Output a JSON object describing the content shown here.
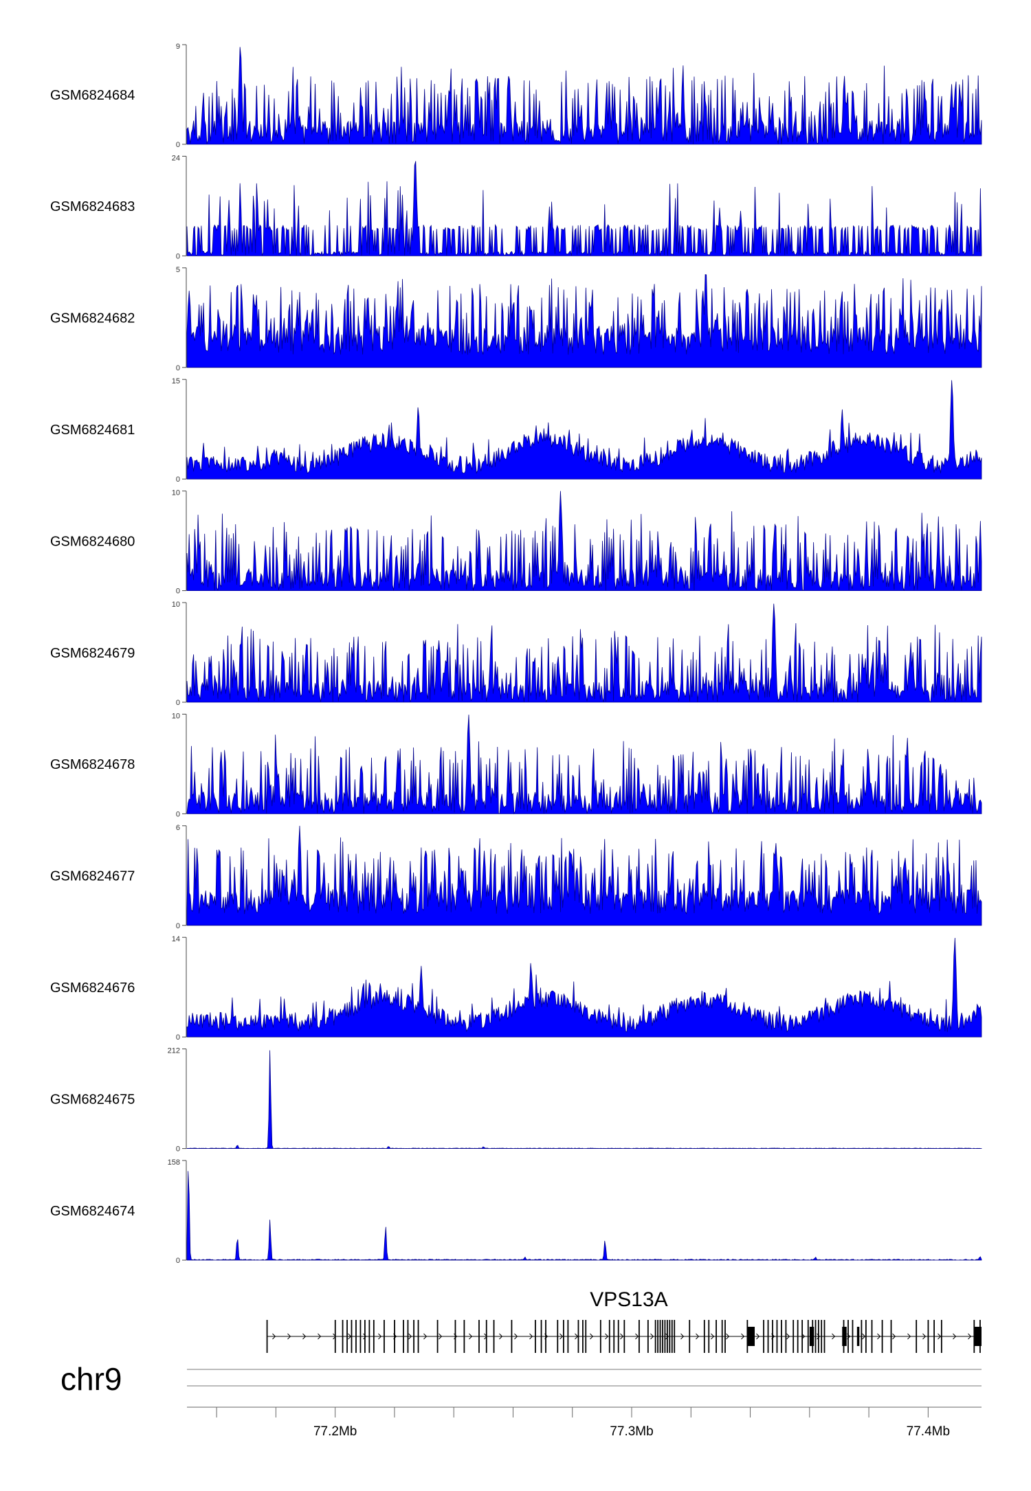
{
  "chart_data": {
    "type": "area",
    "chromosome": "chr9",
    "x_range": [
      77150000,
      77418000
    ],
    "tracks": [
      {
        "name": "GSM6824684",
        "ymax": 9,
        "ymin": 0,
        "style": "uniform_noise",
        "noise_base": 2.2,
        "rise": 0,
        "peaks": [
          [
            77168000,
            9
          ]
        ]
      },
      {
        "name": "GSM6824683",
        "ymax": 24,
        "ymin": 0,
        "style": "spiky_sparse",
        "noise_base": 6,
        "rise": 0,
        "peaks": [
          [
            77227000,
            24
          ]
        ]
      },
      {
        "name": "GSM6824682",
        "ymax": 5,
        "ymin": 0,
        "style": "dense_noise",
        "noise_base": 1.6,
        "rise": 0,
        "peaks": [
          [
            77325000,
            5
          ]
        ]
      },
      {
        "name": "GSM6824681",
        "ymax": 15,
        "ymin": 0,
        "style": "rising_broad",
        "noise_base": 2.5,
        "rise": 77178000,
        "peaks": [
          [
            77228000,
            11
          ],
          [
            77371000,
            10.5
          ],
          [
            77408000,
            15
          ]
        ]
      },
      {
        "name": "GSM6824680",
        "ymax": 10,
        "ymin": 0,
        "style": "uniform_noise",
        "noise_base": 2.2,
        "rise": 0,
        "peaks": [
          [
            77276000,
            10
          ]
        ]
      },
      {
        "name": "GSM6824679",
        "ymax": 10,
        "ymin": 0,
        "style": "uniform_noise",
        "noise_base": 2.2,
        "rise": 0,
        "peaks": [
          [
            77348000,
            10
          ]
        ]
      },
      {
        "name": "GSM6824678",
        "ymax": 10,
        "ymin": 0,
        "style": "uniform_noise",
        "noise_base": 2.2,
        "rise": 0,
        "peaks": [
          [
            77245000,
            10
          ]
        ]
      },
      {
        "name": "GSM6824677",
        "ymax": 6,
        "ymin": 0,
        "style": "dense_noise",
        "noise_base": 1.7,
        "rise": 0,
        "peaks": [
          [
            77188000,
            6
          ]
        ]
      },
      {
        "name": "GSM6824676",
        "ymax": 14,
        "ymin": 0,
        "style": "rising_broad",
        "noise_base": 2.3,
        "rise": 77183000,
        "peaks": [
          [
            77229000,
            10
          ],
          [
            77266000,
            10.5
          ],
          [
            77409000,
            14
          ]
        ]
      },
      {
        "name": "GSM6824675",
        "ymax": 212,
        "ymin": 0,
        "style": "flat_peaks",
        "noise_base": 1,
        "rise": 0,
        "peaks": [
          [
            77178000,
            212
          ],
          [
            77167000,
            8
          ],
          [
            77218000,
            5
          ],
          [
            77250000,
            4
          ]
        ]
      },
      {
        "name": "GSM6824674",
        "ymax": 158,
        "ymin": 0,
        "style": "flat_peaks",
        "noise_base": 1.5,
        "rise": 0,
        "peaks": [
          [
            77150500,
            158
          ],
          [
            77167000,
            38
          ],
          [
            77178000,
            65
          ],
          [
            77217000,
            56
          ],
          [
            77291000,
            33
          ],
          [
            77264000,
            5
          ],
          [
            77362000,
            5
          ],
          [
            77417500,
            6
          ]
        ]
      }
    ],
    "gene": {
      "name": "VPS13A",
      "start": 77177000,
      "end": 77418000,
      "strand": "+",
      "exons": [
        77177000,
        77200000,
        77202500,
        77204000,
        77205500,
        77207000,
        77208500,
        77210000,
        77211500,
        77213000,
        77216500,
        77220000,
        77223000,
        77224500,
        77226500,
        77228000,
        77234500,
        77240500,
        77243500,
        77248500,
        77251000,
        77253500,
        77259500,
        77267500,
        77269500,
        77271000,
        77275000,
        77277000,
        77278500,
        77282000,
        77283500,
        77284500,
        77289500,
        77292500,
        77294000,
        77295500,
        77297500,
        77302500,
        77305500,
        77308000,
        77308800,
        77309600,
        77310400,
        77311200,
        77312000,
        77312800,
        77313600,
        77314400,
        77319500,
        77324500,
        77326000,
        77328500,
        77330500,
        77331500,
        77339000,
        77344500,
        77346000,
        77347500,
        77349000,
        77350500,
        77352000,
        77354500,
        77356000,
        77357500,
        77359500,
        77361000,
        77362000,
        77363000,
        77364000,
        77365000,
        77371500,
        77373000,
        77374500,
        77377500,
        77379000,
        77381000,
        77384500,
        77387500,
        77396000,
        77400000,
        77402000,
        77404500,
        77415500,
        77417500
      ],
      "wide_exons": [
        [
          77339000,
          77341500
        ],
        [
          77360000,
          77361500
        ],
        [
          77371000,
          77372500
        ],
        [
          77376000,
          77376800
        ],
        [
          77415600,
          77418000
        ]
      ]
    },
    "axis": {
      "ticks": [
        77160000,
        77180000,
        77200000,
        77220000,
        77240000,
        77260000,
        77280000,
        77300000,
        77320000,
        77340000,
        77360000,
        77380000,
        77400000
      ],
      "labels": [
        {
          "value": 77200000,
          "text": "77.2Mb"
        },
        {
          "value": 77300000,
          "text": "77.3Mb"
        },
        {
          "value": 77400000,
          "text": "77.4Mb"
        }
      ]
    },
    "colors": {
      "fill": "#0000ff",
      "outline": "#00008b",
      "axis": "#666666",
      "gene": "#000000"
    }
  }
}
